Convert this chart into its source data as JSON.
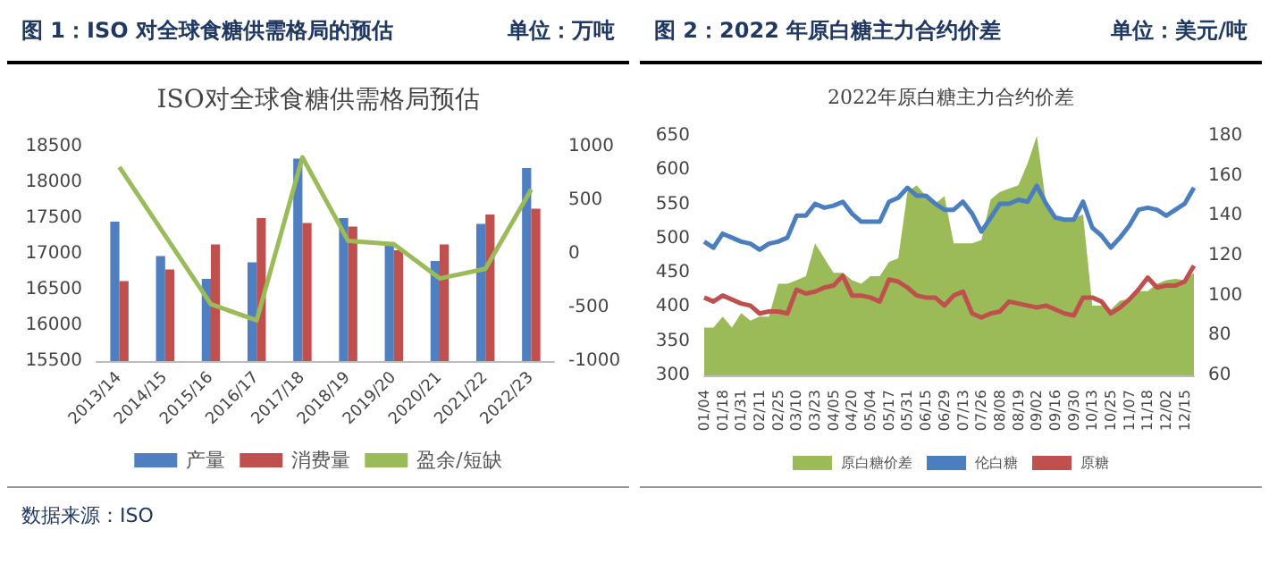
{
  "chart_data": [
    {
      "type": "bar",
      "title": "图 1：ISO 对全球食糖供需格局的预估",
      "subtitle": "ISO对全球食糖供需格局预估",
      "annotations": [
        "单位：万吨",
        "数据来源：ISO"
      ],
      "categories": [
        "2013/14",
        "2014/15",
        "2015/16",
        "2016/17",
        "2017/18",
        "2018/19",
        "2019/20",
        "2020/21",
        "2021/22",
        "2022/23"
      ],
      "series": [
        {
          "name": "产量",
          "color": "#4f7fc0",
          "values": [
            17450,
            16970,
            16650,
            16880,
            18330,
            17500,
            17150,
            16900,
            17420,
            18200
          ]
        },
        {
          "name": "消费量",
          "color": "#c0504d",
          "values": [
            16620,
            16780,
            17130,
            17500,
            17430,
            17380,
            17050,
            17130,
            17550,
            17630
          ]
        },
        {
          "name": "盈余/短缺",
          "type": "line",
          "axis": "y2",
          "color": "#9bbb59",
          "values": [
            810,
            170,
            -470,
            -620,
            900,
            120,
            90,
            -230,
            -140,
            600
          ]
        }
      ],
      "ylim": [
        15500,
        18500
      ],
      "yticks": [
        15500,
        16000,
        16500,
        17000,
        17500,
        18000,
        18500
      ],
      "y2lim": [
        -1000,
        1000
      ],
      "y2ticks": [
        -1000,
        -500,
        0,
        500,
        1000
      ],
      "legend": "bottom",
      "marker": "none"
    },
    {
      "type": "line",
      "title": "图 2：2022 年原白糖主力合约价差",
      "subtitle": "2022年原白糖主力合约价差",
      "annotations": [
        "单位：美元/吨"
      ],
      "categories": [
        "01/04",
        null,
        "01/18",
        null,
        "01/31",
        null,
        "02/11",
        null,
        "02/25",
        null,
        "03/10",
        null,
        "03/23",
        null,
        "04/05",
        null,
        "04/20",
        null,
        "05/04",
        null,
        "05/17",
        null,
        "05/31",
        null,
        "06/15",
        null,
        "06/29",
        null,
        "07/13",
        null,
        "07/26",
        null,
        "08/08",
        null,
        "08/19",
        null,
        "09/02",
        null,
        "09/16",
        null,
        "09/30",
        null,
        "10/13",
        null,
        "10/25",
        null,
        "11/07",
        null,
        "11/18",
        null,
        "12/02",
        null,
        "12/15",
        null
      ],
      "series": [
        {
          "name": "原白糖价差",
          "type": "area",
          "color": "#9bbb59",
          "values": [
            370,
            370,
            386,
            370,
            391,
            380,
            386,
            386,
            434,
            434,
            439,
            445,
            493,
            471,
            450,
            450,
            439,
            434,
            445,
            445,
            466,
            471,
            568,
            578,
            562,
            551,
            562,
            493,
            493,
            493,
            498,
            557,
            568,
            573,
            578,
            610,
            650,
            551,
            530,
            530,
            530,
            535,
            402,
            402,
            396,
            409,
            412,
            423,
            423,
            434,
            439,
            441,
            439,
            450
          ]
        },
        {
          "name": "伦白糖",
          "axis": "y2",
          "color": "#4a7ebf",
          "values": [
            127,
            124,
            131,
            129,
            127,
            126,
            123,
            126,
            127,
            129,
            140,
            140,
            146,
            144,
            145,
            147,
            141,
            137,
            137,
            137,
            147,
            149,
            154,
            150,
            150,
            146,
            143,
            143,
            147,
            141,
            132,
            139,
            146,
            146,
            148,
            147,
            155,
            146,
            139,
            138,
            138,
            147,
            134,
            130,
            124,
            129,
            135,
            143,
            144,
            143,
            140,
            143,
            146,
            154
          ]
        },
        {
          "name": "原糖",
          "axis": "y2",
          "color": "#c0504d",
          "values": [
            99,
            97,
            100,
            98,
            96,
            95,
            91,
            92,
            92,
            91,
            103,
            101,
            102,
            104,
            105,
            110,
            100,
            100,
            99,
            97,
            108,
            107,
            104,
            100,
            99,
            99,
            95,
            100,
            102,
            91,
            89,
            91,
            92,
            97,
            96,
            95,
            94,
            95,
            93,
            91,
            90,
            99,
            99,
            97,
            91,
            94,
            98,
            103,
            109,
            104,
            105,
            105,
            107,
            115
          ]
        }
      ],
      "ylim": [
        300,
        650
      ],
      "yticks": [
        300,
        350,
        400,
        450,
        500,
        550,
        600,
        650
      ],
      "y2lim": [
        60,
        180
      ],
      "y2ticks": [
        60,
        80,
        100,
        120,
        140,
        160,
        180
      ],
      "legend": "bottom",
      "marker": "none"
    }
  ]
}
